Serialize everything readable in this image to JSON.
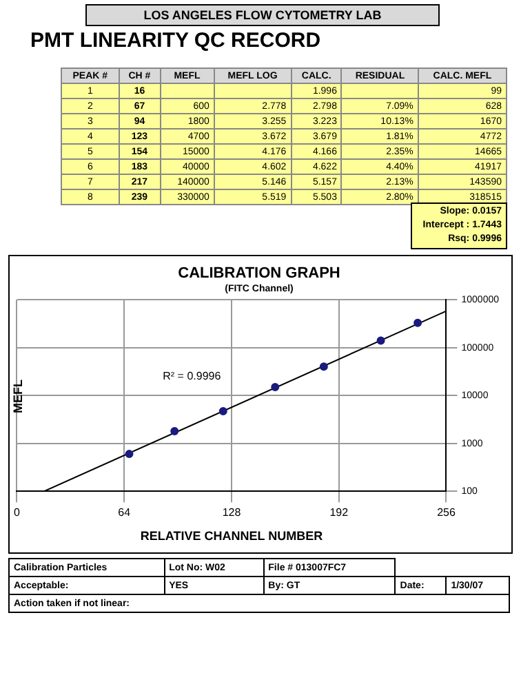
{
  "chart_data": {
    "type": "scatter",
    "title": "CALIBRATION GRAPH",
    "subtitle": "(FITC Channel)",
    "xlabel": "RELATIVE CHANNEL NUMBER",
    "ylabel": "MEFL",
    "x": [
      67,
      94,
      123,
      154,
      183,
      217,
      239
    ],
    "series": [
      {
        "color": "#1a1a80",
        "values": [
          600,
          1800,
          4700,
          15000,
          40000,
          140000,
          330000
        ],
        "marker": "circle"
      },
      {
        "type": "line",
        "color": "#000000",
        "x": [
          16.3,
          256
        ],
        "values": [
          100,
          580000
        ],
        "marker": "none"
      }
    ],
    "xlim": [
      0,
      256
    ],
    "xticks": [
      0,
      64,
      128,
      192,
      256
    ],
    "ylim": [
      100,
      1000000
    ],
    "yticks": [
      100,
      1000,
      10000,
      100000,
      1000000
    ],
    "log": "y",
    "grid": true,
    "legend": false,
    "annotations": [
      "LOS ANGELES FLOW CYTOMETRY LAB",
      "PMT LINEARITY QC RECORD",
      "PEAK #",
      "CH #",
      "MEFL",
      "MEFL LOG",
      "CALC.",
      "RESIDUAL",
      "CALC. MEFL",
      "1",
      "16",
      "1.996",
      "99",
      "2",
      "67",
      "600",
      "2.778",
      "2.798",
      "7.09%",
      "628",
      "3",
      "94",
      "1800",
      "3.255",
      "3.223",
      "10.13%",
      "1670",
      "4",
      "123",
      "4700",
      "3.672",
      "3.679",
      "1.81%",
      "4772",
      "5",
      "154",
      "15000",
      "4.176",
      "4.166",
      "2.35%",
      "14665",
      "6",
      "183",
      "40000",
      "4.602",
      "4.622",
      "4.40%",
      "41917",
      "7",
      "217",
      "140000",
      "5.146",
      "5.157",
      "2.13%",
      "143590",
      "8",
      "239",
      "330000",
      "5.519",
      "5.503",
      "2.80%",
      "318515",
      "Slope:  0.0157",
      "Intercept :  1.7443",
      "Rsq:  0.9996",
      "R² = 0.9996",
      "Calibration Particles",
      "Lot No: W02",
      "File # 013007FC7",
      "Acceptable:",
      "YES",
      "By: GT",
      "Date:",
      "1/30/07",
      "Action taken if not linear:"
    ]
  }
}
